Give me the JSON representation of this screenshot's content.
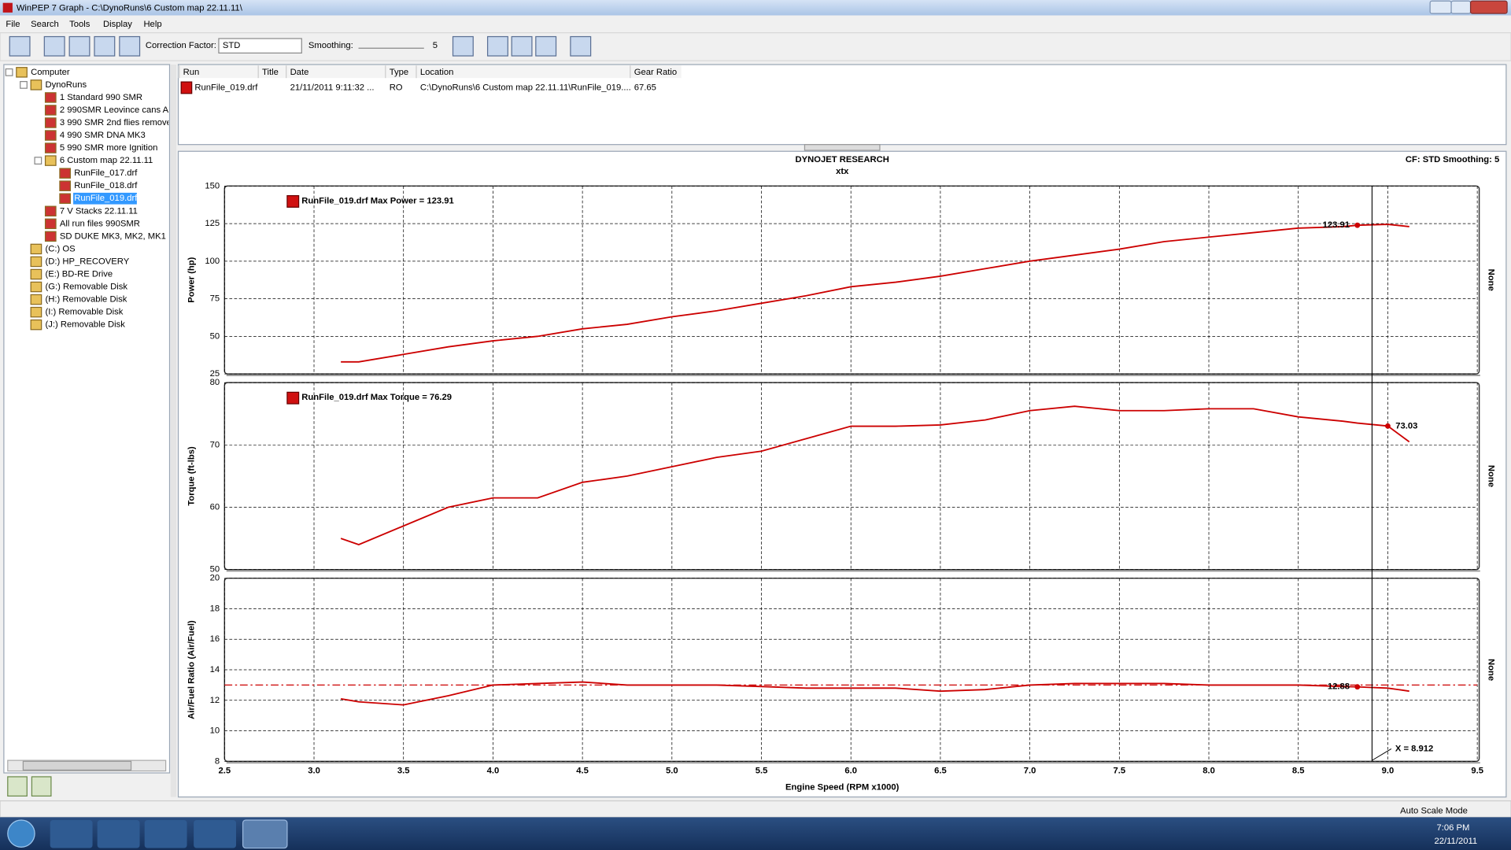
{
  "window": {
    "title": "WinPEP 7    Graph - C:\\DynoRuns\\6 Custom map 22.11.11\\"
  },
  "menu": [
    "File",
    "Search",
    "Tools",
    "Display",
    "Help"
  ],
  "toolbar": {
    "correction_label": "Correction Factor:",
    "correction": "STD",
    "smoothing_label": "Smoothing:",
    "smoothing": 5
  },
  "tree": {
    "label": "Computer",
    "children": [
      {
        "label": "DynoRuns",
        "children": [
          {
            "label": "1 Standard 990 SMR"
          },
          {
            "label": "2 990SMR Leovince cans A"
          },
          {
            "label": "3 990 SMR 2nd flies remove"
          },
          {
            "label": "4 990 SMR DNA MK3"
          },
          {
            "label": "5 990 SMR more Ignition"
          },
          {
            "label": "6 Custom map 22.11.11",
            "children": [
              {
                "label": "RunFile_017.drf"
              },
              {
                "label": "RunFile_018.drf"
              },
              {
                "label": "RunFile_019.drf",
                "selected": true
              }
            ]
          },
          {
            "label": "7 V Stacks 22.11.11"
          },
          {
            "label": "All run files 990SMR"
          },
          {
            "label": "SD DUKE MK3, MK2, MK1"
          }
        ]
      },
      {
        "label": "(C:) OS"
      },
      {
        "label": "(D:) HP_RECOVERY"
      },
      {
        "label": "(E:) BD-RE Drive"
      },
      {
        "label": "(G:) Removable Disk"
      },
      {
        "label": "(H:) Removable Disk"
      },
      {
        "label": "(I:) Removable Disk"
      },
      {
        "label": "(J:) Removable Disk"
      }
    ]
  },
  "runs": {
    "columns": [
      "Run",
      "Title",
      "Date",
      "Type",
      "Location",
      "Gear Ratio"
    ],
    "rows": [
      {
        "Run": "RunFile_019.drf",
        "Date": "21/11/2011 9:11:32 ...",
        "Type": "RO",
        "Location": "C:\\DynoRuns\\6 Custom map 22.11.11\\RunFile_019....",
        "Gear Ratio": "67.65"
      }
    ]
  },
  "graph": {
    "title": "DYNOJET RESEARCH",
    "subtitle": "xtx",
    "info": "CF: STD  Smoothing: 5",
    "x_label": "Engine Speed (RPM x1000)",
    "xlim": [
      2.5,
      9.5
    ],
    "xticks": [
      2.5,
      {
        "value": 3,
        "label": "3.0"
      },
      3.5,
      {
        "value": 4,
        "label": "4.0"
      },
      4.5,
      {
        "value": 5,
        "label": "5.0"
      },
      5.5,
      {
        "value": 6,
        "label": "6.0"
      },
      6.5,
      {
        "value": 7,
        "label": "7.0"
      },
      7.5,
      {
        "value": 8,
        "label": "8.0"
      },
      8.5,
      {
        "value": 9,
        "label": "9.0"
      },
      9.5
    ],
    "x": [
      3.15,
      3.25,
      3.5,
      3.75,
      4.0,
      4.25,
      4.5,
      4.75,
      5.0,
      5.25,
      5.5,
      5.75,
      6.0,
      6.25,
      6.5,
      6.75,
      7.0,
      7.25,
      7.5,
      7.75,
      8.0,
      8.25,
      8.5,
      8.75,
      8.83,
      9.0,
      9.12
    ],
    "cursor": {
      "value": 8.912,
      "label": "X = 8.912"
    },
    "grid": true,
    "panels": [
      {
        "type": "line",
        "y_label": "Power (hp)",
        "side_label": "None",
        "ylim": [
          25,
          150
        ],
        "yticks": [
          150,
          125,
          100,
          75,
          50,
          25
        ],
        "legend": "RunFile_019.drf Max Power = 123.91",
        "color": "#cc0000",
        "values": [
          33,
          33,
          38,
          43,
          47,
          50,
          55,
          58,
          63,
          67,
          72,
          77,
          83,
          86,
          90,
          95,
          100,
          104,
          108,
          113,
          116,
          119,
          122,
          123,
          123.91,
          124.5,
          123
        ],
        "value_labels": [
          null,
          null,
          null,
          null,
          null,
          null,
          null,
          null,
          null,
          null,
          null,
          null,
          null,
          null,
          null,
          null,
          null,
          null,
          null,
          null,
          null,
          null,
          null,
          null,
          "123.91",
          null,
          null
        ]
      },
      {
        "type": "line",
        "y_label": "Torque (ft-lbs)",
        "side_label": "None",
        "ylim": [
          50,
          80
        ],
        "yticks": [
          80,
          70,
          60,
          50
        ],
        "legend": "RunFile_019.drf Max Torque = 76.29",
        "color": "#cc0000",
        "values": [
          55,
          54,
          57,
          60,
          61.5,
          61.5,
          64,
          65,
          66.5,
          68,
          69,
          71,
          73,
          73,
          73.2,
          74,
          75.5,
          76.2,
          75.5,
          75.5,
          75.8,
          75.8,
          74.5,
          73.8,
          73.5,
          73.03,
          70.5
        ],
        "value_labels": [
          null,
          null,
          null,
          null,
          null,
          null,
          null,
          null,
          null,
          null,
          null,
          null,
          null,
          null,
          null,
          null,
          null,
          null,
          null,
          null,
          null,
          null,
          null,
          null,
          null,
          "73.03",
          null
        ]
      },
      {
        "type": "line",
        "y_label": "Air/Fuel Ratio (Air/Fuel)",
        "side_label": "None",
        "ylim": [
          8,
          20
        ],
        "yticks": [
          20,
          18,
          16,
          14,
          12,
          10,
          8
        ],
        "reference": 13,
        "color": "#cc0000",
        "values": [
          12.1,
          11.9,
          11.7,
          12.3,
          13.0,
          13.1,
          13.2,
          13.0,
          13.0,
          13.0,
          12.9,
          12.8,
          12.8,
          12.8,
          12.6,
          12.7,
          13.0,
          13.1,
          13.1,
          13.1,
          13.0,
          13.0,
          13.0,
          12.9,
          12.88,
          12.8,
          12.6
        ],
        "value_labels": [
          null,
          null,
          null,
          null,
          null,
          null,
          null,
          null,
          null,
          null,
          null,
          null,
          null,
          null,
          null,
          null,
          null,
          null,
          null,
          null,
          null,
          null,
          null,
          null,
          "12.88",
          null,
          null
        ]
      }
    ]
  },
  "status": "Auto Scale Mode",
  "taskbar": {
    "time": "7:06 PM",
    "date": "22/11/2011"
  }
}
